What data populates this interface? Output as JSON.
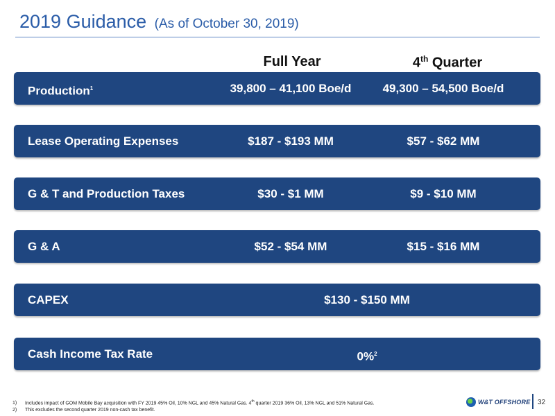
{
  "header": {
    "title": "2019 Guidance",
    "subtitle": "(As of October 30, 2019)"
  },
  "columns": {
    "full_year": "Full Year",
    "quarter_prefix": "4",
    "quarter_sup": "th",
    "quarter_suffix": " Quarter"
  },
  "rows": [
    {
      "label": "Production",
      "label_sup": "1",
      "full_year": "39,800 – 41,100 Boe/d",
      "quarter": "49,300 – 54,500 Boe/d"
    },
    {
      "label": "Lease Operating Expenses",
      "full_year": "$187 - $193 MM",
      "quarter": "$57 - $62 MM"
    },
    {
      "label": "G & T and Production Taxes",
      "full_year": "$30 - $1 MM",
      "quarter": "$9 - $10 MM"
    },
    {
      "label": "G & A",
      "full_year": "$52 - $54 MM",
      "quarter": "$15 - $16 MM"
    },
    {
      "label": "CAPEX",
      "span_value": "$130 - $150  MM"
    },
    {
      "label": "Cash Income Tax Rate",
      "span_value": "0%",
      "span_sup": "2"
    }
  ],
  "footnotes": [
    {
      "num": "1)",
      "text_a": "Includes impact of GOM Mobile Bay acquisition with FY 2019 45% Oil, 10% NGL and 45% Natural Gas. 4",
      "sup": "th",
      "text_b": " quarter 2019 36% Oil, 13% NGL and 51% Natural Gas."
    },
    {
      "num": "2)",
      "text_a": "This excludes the second quarter 2019 non-cash tax benefit."
    }
  ],
  "footer": {
    "logo_text": "W&T OFFSHORE",
    "page_number": "32"
  },
  "colors": {
    "band": "#1f4680",
    "title": "#2a5ca8",
    "rule": "#5f86c4"
  }
}
